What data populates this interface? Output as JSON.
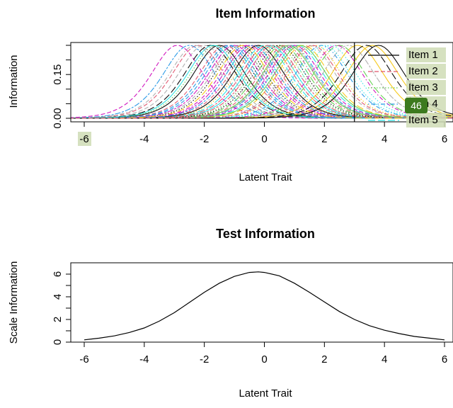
{
  "chart_data": [
    {
      "type": "line",
      "title": "Item Information",
      "xlabel": "Latent Trait",
      "ylabel": "Information",
      "xlim": [
        -6,
        6
      ],
      "ylim": [
        0,
        0.25
      ],
      "x_ticks": [
        "-6",
        "-4",
        "-2",
        "0",
        "2",
        "4",
        "6"
      ],
      "y_ticks": [
        "0.00",
        "0.15"
      ],
      "grid": false,
      "curve_peak": 0.25,
      "curve_a": 1.0,
      "item_difficulties": [
        -1.5,
        -2.2,
        -1.6,
        0.9,
        1.1,
        -0.5,
        3.6,
        -2.0,
        -0.8,
        -0.3,
        0.6,
        -2.5,
        0.2,
        -2.9,
        -0.1,
        1.5,
        -1.8,
        0.3,
        0.8,
        -1.1,
        2.2,
        -0.6,
        1.3,
        2.8,
        -0.2,
        -1.3,
        0.4,
        1.9,
        0.0,
        -1.0,
        3.1,
        -0.9,
        0.5,
        0.7,
        2.5,
        -0.4,
        -1.7,
        1.0,
        1.7,
        -2.3,
        3.4,
        0.1,
        1.2,
        -1.2,
        2.0,
        2.4,
        -0.7,
        0.85,
        3.8,
        1.6
      ],
      "vertical_line_x": 3,
      "legend": {
        "position": "top-right",
        "items": [
          {
            "label": "Item 1",
            "color": "#000000",
            "dash": "solid"
          },
          {
            "label": "Item 2",
            "color": "#DF536B",
            "dash": "dashed"
          },
          {
            "label": "Item 3",
            "color": "#61D04F",
            "dash": "dotted"
          },
          {
            "label": "Item 4",
            "color": "#2297E6",
            "dash": "dotdash"
          },
          {
            "label": "Item 5",
            "color": "#28E2E5",
            "dash": "longdash"
          }
        ]
      },
      "badge": "46"
    },
    {
      "type": "line",
      "title": "Test Information",
      "xlabel": "Latent Trait",
      "ylabel": "Scale Information",
      "xlim": [
        -6,
        6
      ],
      "ylim": [
        0,
        6.5
      ],
      "x_ticks": [
        "-6",
        "-4",
        "-2",
        "0",
        "2",
        "4",
        "6"
      ],
      "y_ticks": [
        "0",
        "2",
        "4",
        "6"
      ],
      "grid": false,
      "series": [
        {
          "x": [
            -6,
            -5.5,
            -5,
            -4.5,
            -4,
            -3.5,
            -3,
            -2.5,
            -2,
            -1.5,
            -1,
            -0.5,
            -0.2,
            0,
            0.5,
            1,
            1.5,
            2,
            2.5,
            3,
            3.5,
            4,
            4.5,
            5,
            5.5,
            6
          ],
          "y": [
            0.2,
            0.35,
            0.55,
            0.85,
            1.25,
            1.85,
            2.6,
            3.5,
            4.4,
            5.2,
            5.8,
            6.15,
            6.2,
            6.15,
            5.85,
            5.2,
            4.4,
            3.55,
            2.7,
            2.0,
            1.45,
            1.05,
            0.75,
            0.5,
            0.35,
            0.2
          ],
          "color": "#000000"
        }
      ]
    }
  ]
}
